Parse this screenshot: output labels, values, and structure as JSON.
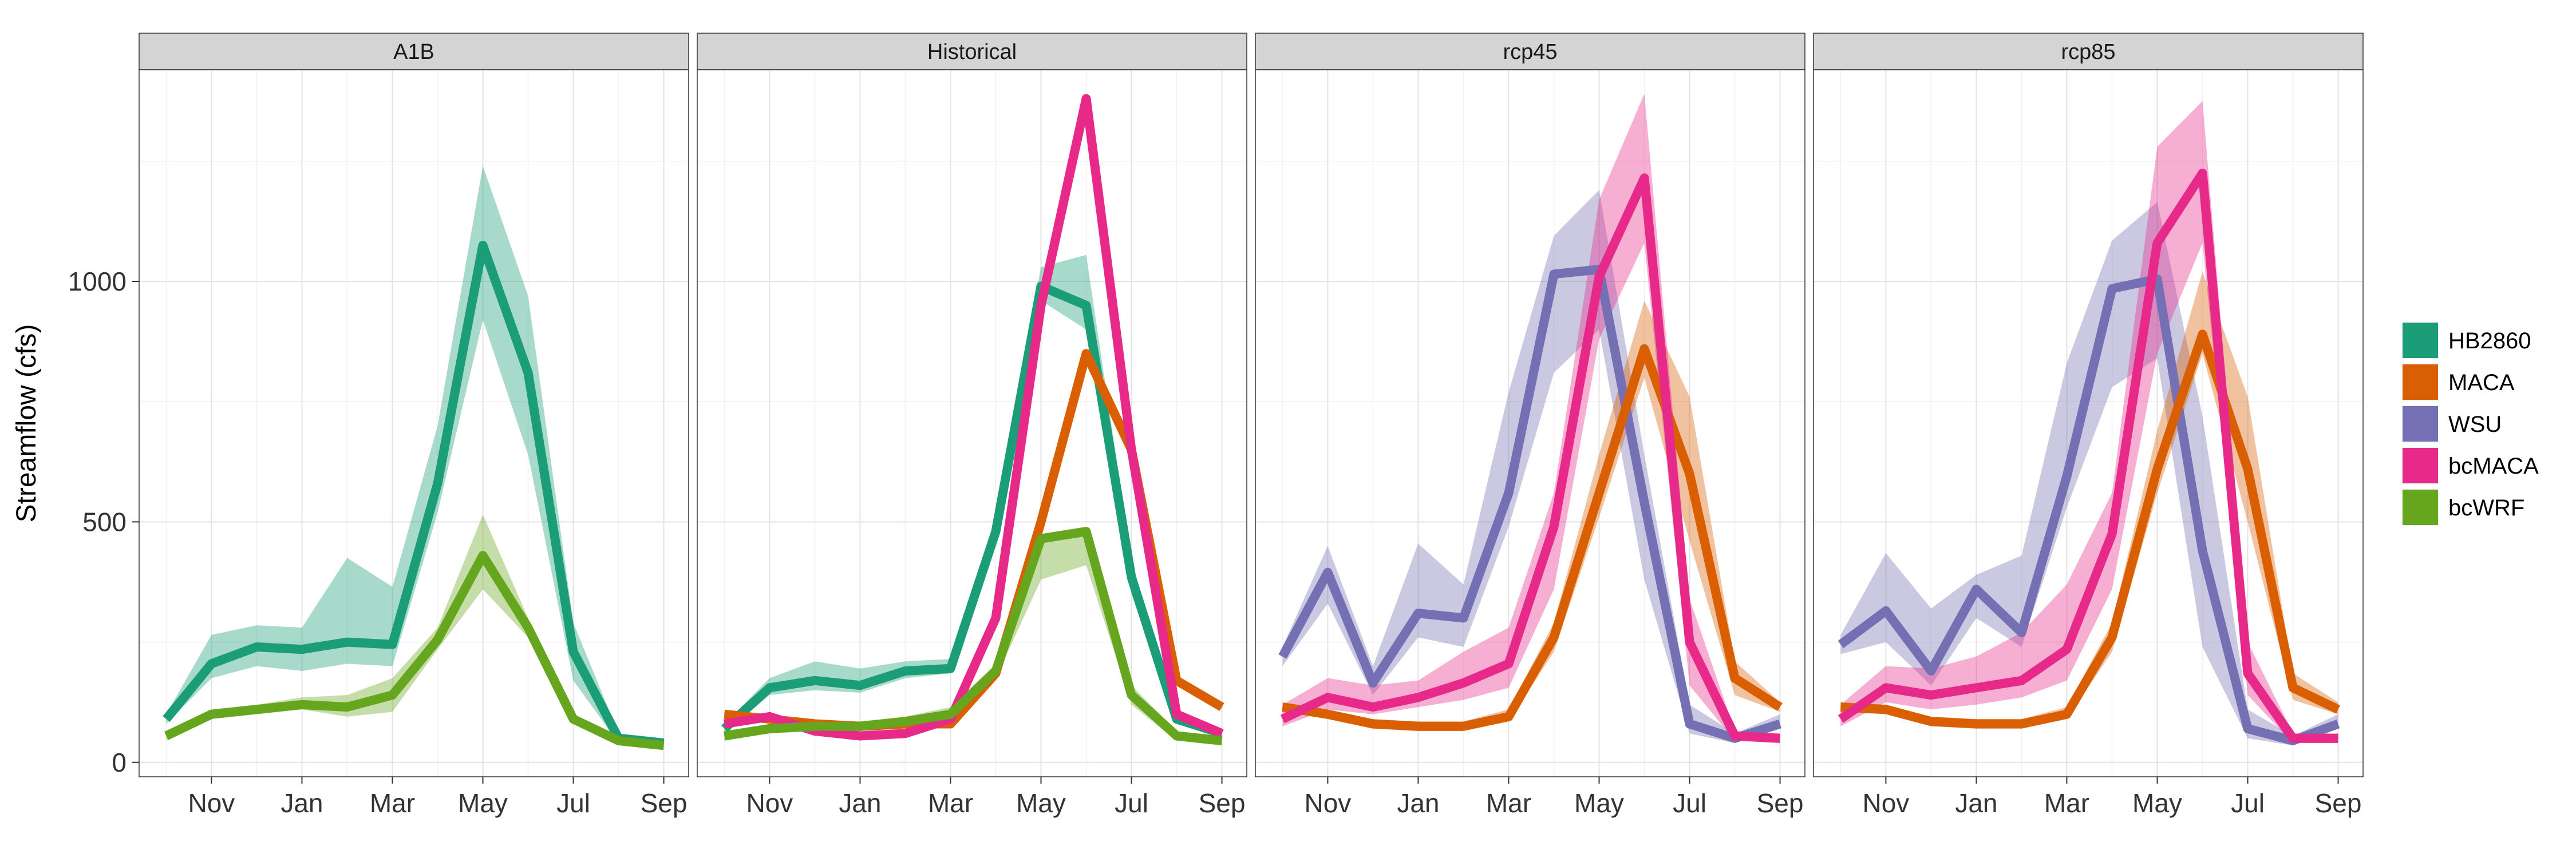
{
  "chart_data": {
    "type": "line",
    "ylabel": "Streamflow (cfs)",
    "xlabel": "",
    "y_ticks": [
      0,
      500,
      1000
    ],
    "x_tick_labels": [
      "Nov",
      "Jan",
      "Mar",
      "May",
      "Jul",
      "Sep"
    ],
    "x_tick_positions": [
      2,
      4,
      6,
      8,
      10,
      12
    ],
    "xlim": [
      0.4,
      12.55
    ],
    "ylim": [
      -30,
      1440
    ],
    "x": [
      1,
      2,
      3,
      4,
      5,
      6,
      7,
      8,
      9,
      10,
      11,
      12
    ],
    "ribbons": "shaded range around each series",
    "legend": [
      {
        "name": "HB2860",
        "color": "#1b9e77"
      },
      {
        "name": "MACA",
        "color": "#d95f02"
      },
      {
        "name": "WSU",
        "color": "#7570b3"
      },
      {
        "name": "bcMACA",
        "color": "#e7298a"
      },
      {
        "name": "bcWRF",
        "color": "#66a61e"
      }
    ],
    "legend_position": "right",
    "grid": true,
    "panels": [
      {
        "title": "A1B",
        "series": [
          {
            "name": "HB2860",
            "color": "#1b9e77",
            "values": [
              90,
              205,
              240,
              235,
              250,
              245,
              580,
              1075,
              810,
              230,
              50,
              40
            ],
            "lower": [
              80,
              175,
              200,
              190,
              205,
              200,
              520,
              920,
              640,
              170,
              40,
              30
            ],
            "upper": [
              100,
              265,
              285,
              280,
              425,
              365,
              700,
              1240,
              970,
              290,
              60,
              50
            ]
          },
          {
            "name": "bcWRF",
            "color": "#66a61e",
            "values": [
              55,
              100,
              110,
              120,
              115,
              140,
              255,
              430,
              280,
              90,
              45,
              35
            ],
            "lower": [
              45,
              90,
              100,
              110,
              95,
              105,
              235,
              360,
              260,
              80,
              40,
              30
            ],
            "upper": [
              65,
              110,
              120,
              135,
              140,
              175,
              280,
              515,
              300,
              100,
              55,
              45
            ]
          }
        ]
      },
      {
        "title": "Historical",
        "series": [
          {
            "name": "HB2860",
            "color": "#1b9e77",
            "values": [
              70,
              155,
              170,
              160,
              190,
              195,
              480,
              990,
              950,
              385,
              90,
              60
            ],
            "lower": [
              60,
              140,
              150,
              145,
              175,
              185,
              450,
              960,
              900,
              350,
              80,
              50
            ],
            "upper": [
              80,
              175,
              210,
              195,
              210,
              215,
              510,
              1030,
              1055,
              420,
              100,
              70
            ]
          },
          {
            "name": "MACA",
            "color": "#d95f02",
            "values": [
              100,
              90,
              80,
              75,
              80,
              80,
              185,
              500,
              850,
              650,
              170,
              115
            ],
            "lower": [
              95,
              85,
              75,
              70,
              75,
              75,
              180,
              490,
              840,
              640,
              165,
              110
            ],
            "upper": [
              105,
              95,
              85,
              80,
              85,
              85,
              190,
              510,
              860,
              660,
              175,
              120
            ]
          },
          {
            "name": "bcMACA",
            "color": "#e7298a",
            "values": [
              80,
              95,
              65,
              55,
              60,
              90,
              300,
              950,
              1380,
              650,
              100,
              60
            ],
            "lower": [
              75,
              90,
              60,
              50,
              55,
              85,
              295,
              940,
              1370,
              640,
              95,
              55
            ],
            "upper": [
              85,
              100,
              70,
              60,
              65,
              95,
              305,
              960,
              1390,
              660,
              105,
              65
            ]
          },
          {
            "name": "bcWRF",
            "color": "#66a61e",
            "values": [
              55,
              70,
              75,
              75,
              85,
              100,
              190,
              465,
              480,
              140,
              55,
              45
            ],
            "lower": [
              45,
              60,
              65,
              65,
              75,
              90,
              175,
              380,
              410,
              120,
              45,
              35
            ],
            "upper": [
              65,
              80,
              85,
              85,
              95,
              115,
              205,
              475,
              490,
              160,
              65,
              55
            ]
          }
        ]
      },
      {
        "title": "rcp45",
        "series": [
          {
            "name": "WSU",
            "color": "#7570b3",
            "values": [
              220,
              395,
              165,
              310,
              300,
              560,
              1015,
              1025,
              540,
              80,
              50,
              80
            ],
            "lower": [
              200,
              330,
              140,
              260,
              240,
              490,
              810,
              900,
              380,
              60,
              40,
              70
            ],
            "upper": [
              240,
              450,
              200,
              455,
              370,
              770,
              1095,
              1190,
              640,
              120,
              60,
              100
            ]
          },
          {
            "name": "MACA",
            "color": "#d95f02",
            "values": [
              115,
              100,
              80,
              75,
              75,
              95,
              260,
              560,
              860,
              600,
              175,
              115
            ],
            "lower": [
              105,
              90,
              70,
              65,
              65,
              85,
              230,
              510,
              800,
              460,
              140,
              105
            ],
            "upper": [
              125,
              110,
              90,
              85,
              85,
              110,
              290,
              640,
              960,
              760,
              210,
              125
            ]
          },
          {
            "name": "bcMACA",
            "color": "#e7298a",
            "values": [
              90,
              135,
              115,
              135,
              165,
              205,
              490,
              1010,
              1215,
              250,
              55,
              50
            ],
            "lower": [
              75,
              110,
              100,
              115,
              130,
              155,
              360,
              880,
              1080,
              160,
              45,
              40
            ],
            "upper": [
              120,
              175,
              160,
              170,
              230,
              280,
              560,
              1170,
              1390,
              340,
              65,
              60
            ]
          }
        ]
      },
      {
        "title": "rcp85",
        "series": [
          {
            "name": "WSU",
            "color": "#7570b3",
            "values": [
              245,
              315,
              190,
              360,
              270,
              595,
              985,
              1005,
              440,
              70,
              45,
              80
            ],
            "lower": [
              225,
              250,
              160,
              300,
              240,
              530,
              780,
              840,
              240,
              50,
              35,
              70
            ],
            "upper": [
              265,
              435,
              320,
              390,
              430,
              830,
              1085,
              1165,
              720,
              110,
              55,
              100
            ]
          },
          {
            "name": "MACA",
            "color": "#d95f02",
            "values": [
              115,
              110,
              85,
              80,
              80,
              100,
              260,
              610,
              890,
              610,
              155,
              110
            ],
            "lower": [
              105,
              100,
              75,
              70,
              70,
              90,
              230,
              560,
              850,
              500,
              130,
              100
            ],
            "upper": [
              125,
              120,
              95,
              90,
              90,
              115,
              290,
              690,
              1020,
              760,
              185,
              125
            ]
          },
          {
            "name": "bcMACA",
            "color": "#e7298a",
            "values": [
              90,
              155,
              140,
              155,
              170,
              235,
              475,
              1080,
              1225,
              185,
              50,
              50
            ],
            "lower": [
              75,
              125,
              110,
              120,
              135,
              170,
              360,
              850,
              1080,
              140,
              40,
              40
            ],
            "upper": [
              120,
              200,
              195,
              220,
              270,
              370,
              560,
              1280,
              1375,
              250,
              60,
              60
            ]
          }
        ]
      }
    ]
  }
}
